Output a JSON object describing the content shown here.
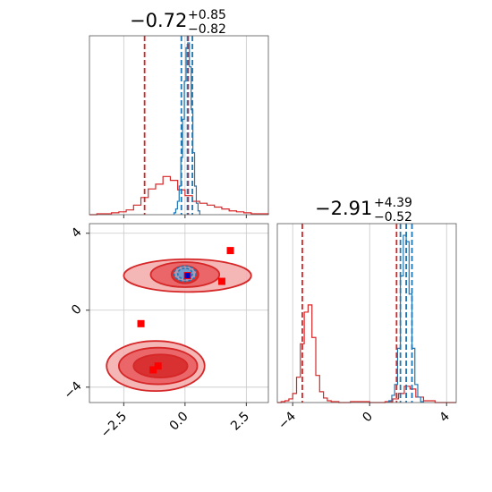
{
  "chart_data": {
    "type": "corner",
    "parameters": [
      {
        "title_value": "−0.72",
        "title_plus": "+0.85",
        "title_minus": "−0.82",
        "range": [
          -3.9,
          3.4
        ],
        "ticks": [
          -2.5,
          0.0,
          2.5
        ],
        "tick_labels": [
          "−2.5",
          "0.0",
          "2.5"
        ]
      },
      {
        "title_value": "−2.91",
        "title_plus": "+4.39",
        "title_minus": "−0.52",
        "range": [
          -4.8,
          4.5
        ],
        "ticks": [
          -4,
          0,
          4
        ],
        "tick_labels": [
          "−4",
          "0",
          "4"
        ]
      }
    ],
    "series": [
      {
        "color": "#d62728",
        "param0_lines": [
          -1.65,
          0.13
        ],
        "param1_lines": [
          -3.5,
          1.4
        ]
      },
      {
        "color": "#1f77b4",
        "param0_lines": [
          -0.15,
          0.1,
          0.3
        ],
        "param1_lines": [
          1.6,
          1.9,
          2.2
        ]
      }
    ],
    "histograms": {
      "param0_red": {
        "bins": [
          -3.9,
          -3.6,
          -3.3,
          -3.0,
          -2.7,
          -2.4,
          -2.1,
          -1.8,
          -1.5,
          -1.2,
          -0.9,
          -0.6,
          -0.3,
          0.0,
          0.3,
          0.6,
          0.9,
          1.2,
          1.5,
          1.8,
          2.1,
          2.4,
          2.7,
          3.0,
          3.4
        ],
        "values": [
          0,
          1,
          1,
          2,
          3,
          5,
          10,
          18,
          27,
          32,
          40,
          36,
          26,
          20,
          14,
          12,
          10,
          8,
          6,
          4,
          3,
          2,
          1,
          1
        ]
      },
      "param0_blue": {
        "bins": [
          -0.45,
          -0.38,
          -0.31,
          -0.24,
          -0.17,
          -0.1,
          -0.03,
          0.04,
          0.11,
          0.18,
          0.25,
          0.32,
          0.39,
          0.46,
          0.53,
          0.6
        ],
        "values": [
          2,
          6,
          14,
          30,
          60,
          100,
          140,
          175,
          180,
          155,
          110,
          65,
          30,
          12,
          4
        ]
      },
      "param1_red": {
        "bins": [
          -4.8,
          -4.6,
          -4.4,
          -4.2,
          -4.0,
          -3.8,
          -3.6,
          -3.4,
          -3.2,
          -3.0,
          -2.8,
          -2.6,
          -2.4,
          -2.2,
          -2.0,
          -1.6,
          -1.0,
          0.0,
          0.8,
          1.2,
          1.5,
          1.8,
          2.1,
          2.4,
          2.8,
          3.4,
          4.5
        ],
        "values": [
          0,
          1,
          2,
          4,
          10,
          28,
          65,
          100,
          108,
          72,
          30,
          12,
          5,
          2,
          1,
          0,
          1,
          0,
          1,
          4,
          10,
          18,
          15,
          6,
          2,
          0
        ]
      },
      "param1_blue": {
        "bins": [
          1.0,
          1.15,
          1.3,
          1.45,
          1.6,
          1.75,
          1.9,
          2.05,
          2.2,
          2.35,
          2.5,
          2.65,
          2.8
        ],
        "values": [
          2,
          8,
          20,
          60,
          140,
          185,
          178,
          120,
          60,
          20,
          6,
          1
        ]
      }
    },
    "contours_red": [
      {
        "cx": 0.1,
        "cy": 1.8,
        "rx": 2.6,
        "ry": 0.85
      },
      {
        "cx": 0.0,
        "cy": 1.85,
        "rx": 1.4,
        "ry": 0.65
      },
      {
        "cx": 0.0,
        "cy": 1.85,
        "rx": 0.55,
        "ry": 0.45
      },
      {
        "cx": -1.2,
        "cy": -2.9,
        "rx": 2.0,
        "ry": 1.3
      },
      {
        "cx": -1.1,
        "cy": -2.9,
        "rx": 1.6,
        "ry": 0.95
      },
      {
        "cx": -1.0,
        "cy": -2.9,
        "rx": 1.1,
        "ry": 0.6
      }
    ],
    "contours_blue": [
      {
        "cx": 0.0,
        "cy": 1.9,
        "rx": 0.45,
        "ry": 0.4
      },
      {
        "cx": 0.0,
        "cy": 1.9,
        "rx": 0.3,
        "ry": 0.28
      }
    ],
    "square_markers_red": [
      [
        1.85,
        3.1
      ],
      [
        1.5,
        1.5
      ],
      [
        -1.8,
        -0.7
      ],
      [
        -1.1,
        -2.9
      ],
      [
        -1.3,
        -3.1
      ],
      [
        0.1,
        1.8
      ]
    ],
    "square_markers_blue": [
      [
        0.1,
        1.8
      ]
    ],
    "grid": true
  }
}
